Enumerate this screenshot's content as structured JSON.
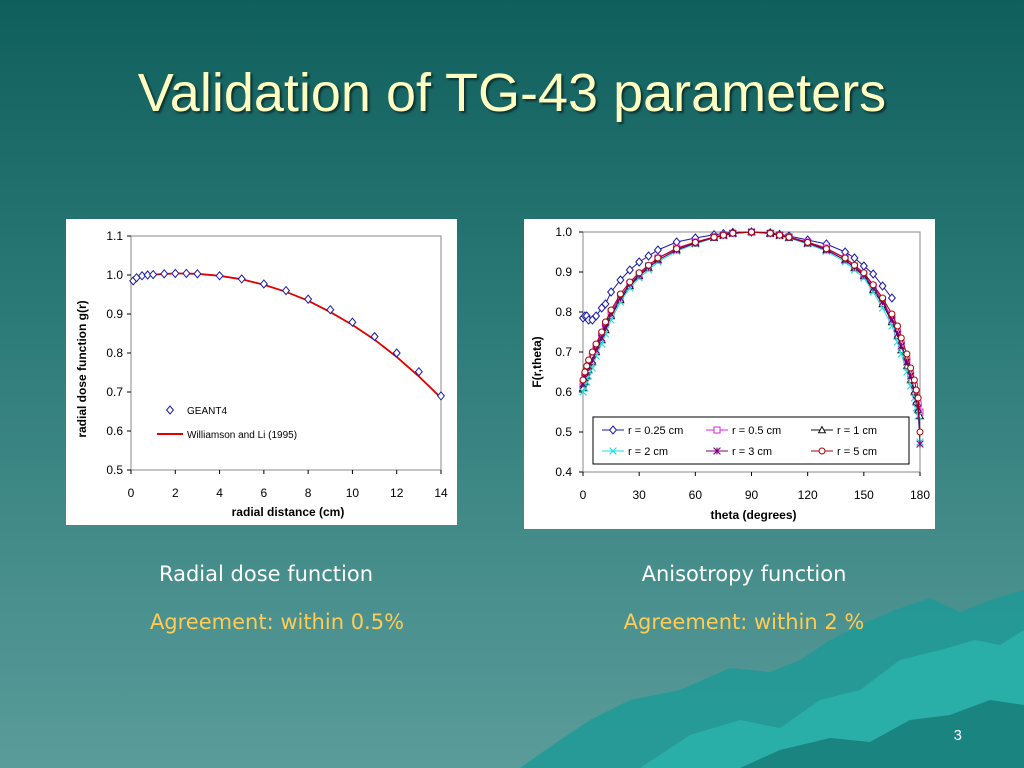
{
  "title": "Validation of TG-43 parameters",
  "page_number": "3",
  "left": {
    "caption": "Radial dose function",
    "agreement": "Agreement: within 0.5%"
  },
  "right": {
    "caption": "Anisotropy function",
    "agreement": "Agreement: within 2 %"
  },
  "colors": {
    "accent_text": "#ffcc55",
    "title_text": "#ffffc2"
  },
  "chart_data": [
    {
      "type": "scatter",
      "title": "",
      "xlabel": "radial distance (cm)",
      "ylabel": "radial dose function g(r)",
      "xlim": [
        0,
        14
      ],
      "ylim": [
        0.5,
        1.1
      ],
      "x_ticks": [
        "0",
        "2",
        "4",
        "6",
        "8",
        "10",
        "12",
        "14"
      ],
      "y_ticks": [
        "0.5",
        "0.6",
        "0.7",
        "0.8",
        "0.9",
        "1.0",
        "1.1"
      ],
      "x_tick_values": [
        0,
        2,
        4,
        6,
        8,
        10,
        12,
        14
      ],
      "y_tick_values": [
        0.5,
        0.6,
        0.7,
        0.8,
        0.9,
        1.0,
        1.1
      ],
      "legend_position": "bottom-left",
      "series": [
        {
          "name": "GEANT4",
          "marker": "diamond",
          "color": "#1a1aa8",
          "points": [
            [
              0.1,
              0.985
            ],
            [
              0.25,
              0.993
            ],
            [
              0.5,
              0.998
            ],
            [
              0.75,
              1.0
            ],
            [
              1,
              1.001
            ],
            [
              1.5,
              1.003
            ],
            [
              2,
              1.004
            ],
            [
              2.5,
              1.004
            ],
            [
              3,
              1.003
            ],
            [
              4,
              0.998
            ],
            [
              5,
              0.99
            ],
            [
              6,
              0.977
            ],
            [
              7,
              0.96
            ],
            [
              8,
              0.938
            ],
            [
              9,
              0.911
            ],
            [
              10,
              0.879
            ],
            [
              11,
              0.842
            ],
            [
              12,
              0.8
            ],
            [
              13,
              0.752
            ],
            [
              14,
              0.69
            ]
          ]
        },
        {
          "name": "Williamson and Li (1995)",
          "marker": "line",
          "color": "#e00000",
          "points": [
            [
              0.1,
              0.99
            ],
            [
              0.5,
              0.998
            ],
            [
              1,
              1.001
            ],
            [
              2,
              1.004
            ],
            [
              3,
              1.003
            ],
            [
              4,
              0.998
            ],
            [
              5,
              0.989
            ],
            [
              6,
              0.975
            ],
            [
              7,
              0.957
            ],
            [
              8,
              0.934
            ],
            [
              9,
              0.905
            ],
            [
              10,
              0.872
            ],
            [
              11,
              0.834
            ],
            [
              12,
              0.79
            ],
            [
              13,
              0.74
            ],
            [
              14,
              0.685
            ]
          ]
        }
      ]
    },
    {
      "type": "line",
      "title": "",
      "xlabel": "theta (degrees)",
      "ylabel": "F(r,theta)",
      "xlim": [
        0,
        180
      ],
      "ylim": [
        0.4,
        1.0
      ],
      "x_ticks": [
        "0",
        "30",
        "60",
        "90",
        "120",
        "150",
        "180"
      ],
      "y_ticks": [
        "0.4",
        "0.5",
        "0.6",
        "0.7",
        "0.8",
        "0.9",
        "1.0"
      ],
      "x_tick_values": [
        0,
        30,
        60,
        90,
        120,
        150,
        180
      ],
      "y_tick_values": [
        0.4,
        0.5,
        0.6,
        0.7,
        0.8,
        0.9,
        1.0
      ],
      "legend_position": "bottom-center",
      "theta": [
        0,
        1,
        2,
        3,
        5,
        7,
        10,
        12,
        15,
        20,
        25,
        30,
        35,
        40,
        50,
        60,
        70,
        75,
        80,
        90,
        100,
        105,
        110,
        120,
        130,
        140,
        145,
        150,
        155,
        160,
        165,
        168,
        170,
        173,
        175,
        177,
        178,
        179,
        180
      ],
      "series": [
        {
          "name": "r = 0.25 cm",
          "marker": "diamond",
          "color": "#1a1aa8",
          "values": [
            0.785,
            0.79,
            0.79,
            0.78,
            0.78,
            0.79,
            0.81,
            0.82,
            0.85,
            0.88,
            0.905,
            0.925,
            0.94,
            0.955,
            0.975,
            0.985,
            0.993,
            0.996,
            0.999,
            1.0,
            0.998,
            0.994,
            0.99,
            0.98,
            0.97,
            0.95,
            0.935,
            0.915,
            0.895,
            0.865,
            0.835,
            null,
            null,
            null,
            null,
            null,
            null,
            null,
            null
          ]
        },
        {
          "name": "r = 0.5 cm",
          "marker": "square",
          "color": "#dd22dd",
          "values": [
            0.615,
            0.64,
            0.655,
            0.665,
            0.69,
            0.715,
            0.745,
            0.77,
            0.8,
            0.84,
            0.87,
            0.895,
            0.915,
            0.935,
            0.96,
            0.975,
            0.988,
            0.993,
            0.997,
            1.0,
            0.997,
            0.993,
            0.988,
            0.975,
            0.96,
            0.935,
            0.915,
            0.895,
            0.865,
            0.83,
            0.785,
            0.75,
            0.72,
            0.68,
            0.645,
            0.615,
            0.59,
            0.57,
            0.55
          ]
        },
        {
          "name": "r = 1 cm",
          "marker": "triangle",
          "color": "#111111",
          "values": [
            0.61,
            0.625,
            0.64,
            0.655,
            0.675,
            0.7,
            0.73,
            0.755,
            0.79,
            0.83,
            0.865,
            0.89,
            0.91,
            0.93,
            0.955,
            0.972,
            0.986,
            0.992,
            0.997,
            1.0,
            0.997,
            0.992,
            0.986,
            0.972,
            0.955,
            0.93,
            0.91,
            0.89,
            0.855,
            0.82,
            0.775,
            0.74,
            0.705,
            0.665,
            0.63,
            0.6,
            0.575,
            0.555,
            0.54
          ]
        },
        {
          "name": "r = 2 cm",
          "marker": "asterisk",
          "color": "#22dddd",
          "values": [
            0.6,
            0.61,
            0.625,
            0.64,
            0.66,
            0.69,
            0.72,
            0.745,
            0.78,
            0.825,
            0.86,
            0.885,
            0.905,
            0.925,
            0.952,
            0.97,
            0.985,
            0.991,
            0.996,
            1.0,
            0.996,
            0.991,
            0.985,
            0.97,
            0.952,
            0.925,
            0.905,
            0.885,
            0.85,
            0.81,
            0.765,
            0.725,
            0.695,
            0.65,
            0.615,
            0.585,
            0.56,
            0.54,
            0.475
          ]
        },
        {
          "name": "r = 3 cm",
          "marker": "star",
          "color": "#770077",
          "values": [
            0.62,
            0.635,
            0.65,
            0.665,
            0.68,
            0.705,
            0.735,
            0.76,
            0.795,
            0.835,
            0.87,
            0.892,
            0.912,
            0.93,
            0.955,
            0.972,
            0.986,
            0.991,
            0.996,
            1.0,
            0.996,
            0.991,
            0.986,
            0.972,
            0.955,
            0.93,
            0.912,
            0.892,
            0.86,
            0.825,
            0.78,
            0.745,
            0.715,
            0.675,
            0.64,
            0.605,
            0.58,
            0.56,
            0.47
          ]
        },
        {
          "name": "r = 5 cm",
          "marker": "circle",
          "color": "#aa0000",
          "values": [
            0.63,
            0.65,
            0.665,
            0.68,
            0.7,
            0.72,
            0.75,
            0.775,
            0.805,
            0.845,
            0.875,
            0.898,
            0.917,
            0.935,
            0.958,
            0.974,
            0.987,
            0.992,
            0.997,
            1.0,
            0.997,
            0.992,
            0.987,
            0.974,
            0.958,
            0.935,
            0.917,
            0.898,
            0.868,
            0.835,
            0.795,
            0.765,
            0.735,
            0.695,
            0.66,
            0.63,
            0.605,
            0.585,
            0.5
          ]
        }
      ]
    }
  ]
}
